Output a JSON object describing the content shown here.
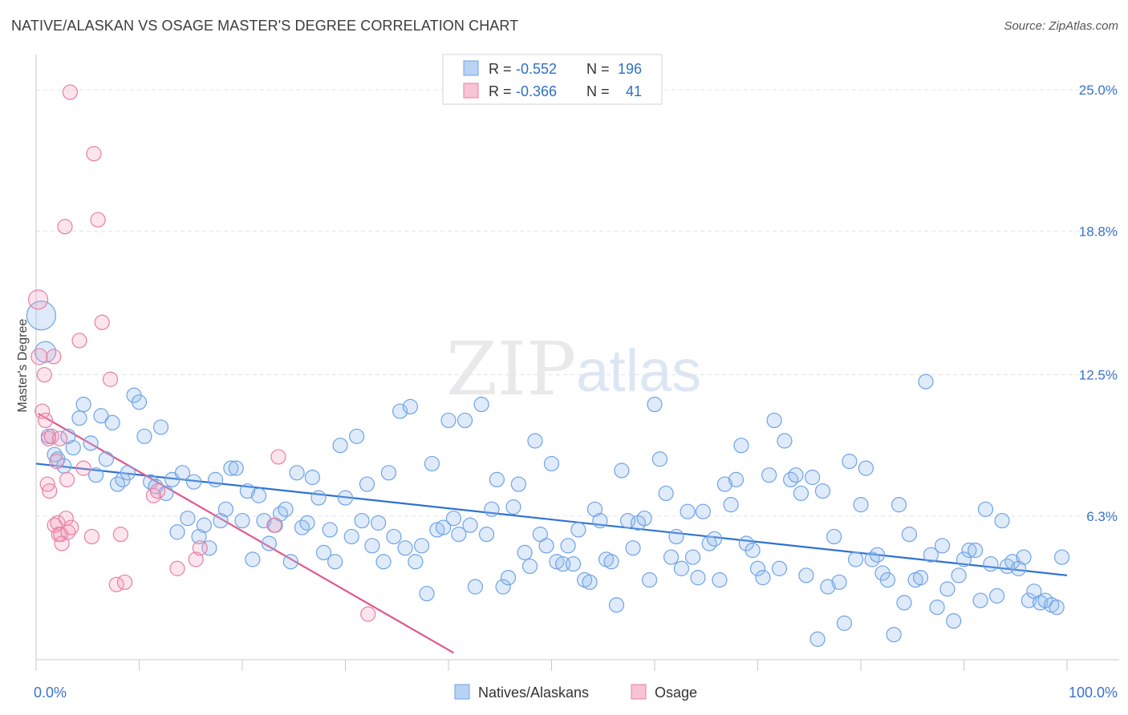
{
  "title": "NATIVE/ALASKAN VS OSAGE MASTER'S DEGREE CORRELATION CHART",
  "source": "Source: ZipAtlas.com",
  "watermark": {
    "zip": "ZIP",
    "atlas": "atlas"
  },
  "chart_data": {
    "type": "scatter",
    "xlabel": "",
    "ylabel": "Master's Degree",
    "xlim": [
      0,
      100
    ],
    "ylim": [
      0,
      26.2
    ],
    "x_tick_labels": [
      "0.0%",
      "100.0%"
    ],
    "y_ticks": [
      {
        "value": 25.0,
        "label": "25.0%"
      },
      {
        "value": 18.8,
        "label": "18.8%"
      },
      {
        "value": 12.5,
        "label": "12.5%"
      },
      {
        "value": 6.3,
        "label": "6.3%"
      }
    ],
    "grid": true,
    "legend_position": "top-center",
    "legend": [
      {
        "name": "Natives/Alaskans",
        "r_label": "R = ",
        "r_value": "-0.552",
        "n_label": "N = ",
        "n_value": "196",
        "color": "#6fa3e6",
        "fill": "#b9d3f5"
      },
      {
        "name": "Osage",
        "r_label": "R = ",
        "r_value": "-0.366",
        "n_label": "N = ",
        "n_value": "41",
        "color": "#e87fa3",
        "fill": "#f8c3d5"
      }
    ],
    "series": [
      {
        "name": "Natives/Alaskans",
        "color": "#6fa3e6",
        "trend": {
          "x": [
            0,
            100
          ],
          "y": [
            8.6,
            3.7
          ]
        },
        "points": [
          [
            0.5,
            15.1
          ],
          [
            0.9,
            13.5
          ],
          [
            1.2,
            9.8
          ],
          [
            1.8,
            9.0
          ],
          [
            2.1,
            8.8
          ],
          [
            2.7,
            8.5
          ],
          [
            3.1,
            9.8
          ],
          [
            3.6,
            9.3
          ],
          [
            4.2,
            10.6
          ],
          [
            4.6,
            11.2
          ],
          [
            5.3,
            9.5
          ],
          [
            5.8,
            8.1
          ],
          [
            6.3,
            10.7
          ],
          [
            6.8,
            8.8
          ],
          [
            7.4,
            10.4
          ],
          [
            7.9,
            7.7
          ],
          [
            8.4,
            7.9
          ],
          [
            8.9,
            8.2
          ],
          [
            9.5,
            11.6
          ],
          [
            10.0,
            11.3
          ],
          [
            10.5,
            9.8
          ],
          [
            11.1,
            7.8
          ],
          [
            11.6,
            7.6
          ],
          [
            12.1,
            10.2
          ],
          [
            12.6,
            7.3
          ],
          [
            13.2,
            7.9
          ],
          [
            13.7,
            5.6
          ],
          [
            14.2,
            8.2
          ],
          [
            14.7,
            6.2
          ],
          [
            15.3,
            7.8
          ],
          [
            15.8,
            5.4
          ],
          [
            16.3,
            5.9
          ],
          [
            16.8,
            4.9
          ],
          [
            17.4,
            7.9
          ],
          [
            17.9,
            6.1
          ],
          [
            18.4,
            6.6
          ],
          [
            18.9,
            8.4
          ],
          [
            19.4,
            8.4
          ],
          [
            20.0,
            6.1
          ],
          [
            20.5,
            7.4
          ],
          [
            21.0,
            4.4
          ],
          [
            21.6,
            7.2
          ],
          [
            22.1,
            6.1
          ],
          [
            22.6,
            5.1
          ],
          [
            23.2,
            5.9
          ],
          [
            23.7,
            6.4
          ],
          [
            24.2,
            6.6
          ],
          [
            24.7,
            4.3
          ],
          [
            25.3,
            8.2
          ],
          [
            25.8,
            5.8
          ],
          [
            26.3,
            6.0
          ],
          [
            26.8,
            8.0
          ],
          [
            27.4,
            7.1
          ],
          [
            27.9,
            4.7
          ],
          [
            28.5,
            5.7
          ],
          [
            29.0,
            4.3
          ],
          [
            29.5,
            9.4
          ],
          [
            30.0,
            7.1
          ],
          [
            30.6,
            5.4
          ],
          [
            31.1,
            9.8
          ],
          [
            31.6,
            6.1
          ],
          [
            32.1,
            7.7
          ],
          [
            32.6,
            5.0
          ],
          [
            33.2,
            6.0
          ],
          [
            33.7,
            4.3
          ],
          [
            34.2,
            8.2
          ],
          [
            34.7,
            5.4
          ],
          [
            35.3,
            10.9
          ],
          [
            35.8,
            4.9
          ],
          [
            36.3,
            11.1
          ],
          [
            36.8,
            4.3
          ],
          [
            37.4,
            5.0
          ],
          [
            37.9,
            2.9
          ],
          [
            38.4,
            8.6
          ],
          [
            38.9,
            5.7
          ],
          [
            39.5,
            5.8
          ],
          [
            40.0,
            10.5
          ],
          [
            40.5,
            6.2
          ],
          [
            41.0,
            5.5
          ],
          [
            41.6,
            10.5
          ],
          [
            42.1,
            5.9
          ],
          [
            42.6,
            3.2
          ],
          [
            43.2,
            11.2
          ],
          [
            43.7,
            5.5
          ],
          [
            44.2,
            6.6
          ],
          [
            44.7,
            7.9
          ],
          [
            45.3,
            3.2
          ],
          [
            45.8,
            3.6
          ],
          [
            46.3,
            6.7
          ],
          [
            46.8,
            7.7
          ],
          [
            47.4,
            4.7
          ],
          [
            47.9,
            4.1
          ],
          [
            48.4,
            9.6
          ],
          [
            48.9,
            5.5
          ],
          [
            49.5,
            5.0
          ],
          [
            50.0,
            8.6
          ],
          [
            50.5,
            4.3
          ],
          [
            51.1,
            4.2
          ],
          [
            51.6,
            5.0
          ],
          [
            52.1,
            4.2
          ],
          [
            52.6,
            5.7
          ],
          [
            53.2,
            3.5
          ],
          [
            53.7,
            3.4
          ],
          [
            54.2,
            6.6
          ],
          [
            54.7,
            6.1
          ],
          [
            55.3,
            4.4
          ],
          [
            55.8,
            4.3
          ],
          [
            56.3,
            2.4
          ],
          [
            56.8,
            8.3
          ],
          [
            57.4,
            6.1
          ],
          [
            57.9,
            4.9
          ],
          [
            58.4,
            6.0
          ],
          [
            59.0,
            6.2
          ],
          [
            59.5,
            3.5
          ],
          [
            60.0,
            11.2
          ],
          [
            60.5,
            8.8
          ],
          [
            61.1,
            7.3
          ],
          [
            61.6,
            4.5
          ],
          [
            62.1,
            5.4
          ],
          [
            62.6,
            4.0
          ],
          [
            63.2,
            6.5
          ],
          [
            63.7,
            4.5
          ],
          [
            64.2,
            3.6
          ],
          [
            64.7,
            6.5
          ],
          [
            65.3,
            5.1
          ],
          [
            65.8,
            5.3
          ],
          [
            66.3,
            3.5
          ],
          [
            66.8,
            7.7
          ],
          [
            67.4,
            6.8
          ],
          [
            67.9,
            7.9
          ],
          [
            68.4,
            9.4
          ],
          [
            68.9,
            5.1
          ],
          [
            69.5,
            4.8
          ],
          [
            70.0,
            4.0
          ],
          [
            70.5,
            3.6
          ],
          [
            71.1,
            8.1
          ],
          [
            71.6,
            10.5
          ],
          [
            72.1,
            4.0
          ],
          [
            72.6,
            9.6
          ],
          [
            73.2,
            7.9
          ],
          [
            73.7,
            8.1
          ],
          [
            74.2,
            7.3
          ],
          [
            74.7,
            3.7
          ],
          [
            75.3,
            8.0
          ],
          [
            75.8,
            0.9
          ],
          [
            76.3,
            7.4
          ],
          [
            76.8,
            3.2
          ],
          [
            77.4,
            5.4
          ],
          [
            77.9,
            3.4
          ],
          [
            78.4,
            1.6
          ],
          [
            78.9,
            8.7
          ],
          [
            79.5,
            4.4
          ],
          [
            80.0,
            6.8
          ],
          [
            80.5,
            8.4
          ],
          [
            81.1,
            4.4
          ],
          [
            81.6,
            4.6
          ],
          [
            82.1,
            3.8
          ],
          [
            82.6,
            3.5
          ],
          [
            83.2,
            1.1
          ],
          [
            83.7,
            6.8
          ],
          [
            84.2,
            2.5
          ],
          [
            84.7,
            5.5
          ],
          [
            85.3,
            3.5
          ],
          [
            85.8,
            3.6
          ],
          [
            86.3,
            12.2
          ],
          [
            86.8,
            4.6
          ],
          [
            87.4,
            2.3
          ],
          [
            87.9,
            5.0
          ],
          [
            88.4,
            3.1
          ],
          [
            89.0,
            1.7
          ],
          [
            89.5,
            3.7
          ],
          [
            90.0,
            4.4
          ],
          [
            90.5,
            4.8
          ],
          [
            91.1,
            4.8
          ],
          [
            91.6,
            2.6
          ],
          [
            92.1,
            6.6
          ],
          [
            92.6,
            4.2
          ],
          [
            93.2,
            2.8
          ],
          [
            93.7,
            6.1
          ],
          [
            94.2,
            4.1
          ],
          [
            94.7,
            4.3
          ],
          [
            95.3,
            4.0
          ],
          [
            95.8,
            4.5
          ],
          [
            96.3,
            2.6
          ],
          [
            96.8,
            3.0
          ],
          [
            97.4,
            2.5
          ],
          [
            97.9,
            2.6
          ],
          [
            98.5,
            2.4
          ],
          [
            99.0,
            2.3
          ],
          [
            99.5,
            4.5
          ]
        ]
      },
      {
        "name": "Osage",
        "color": "#e87fa3",
        "trend": {
          "x": [
            0.2,
            40.5
          ],
          "y": [
            10.8,
            0.3
          ]
        },
        "points": [
          [
            0.2,
            15.8
          ],
          [
            0.3,
            13.3
          ],
          [
            0.6,
            10.9
          ],
          [
            0.8,
            12.5
          ],
          [
            0.9,
            10.5
          ],
          [
            1.1,
            7.7
          ],
          [
            1.2,
            9.7
          ],
          [
            1.3,
            7.4
          ],
          [
            1.5,
            9.8
          ],
          [
            1.7,
            13.3
          ],
          [
            1.8,
            5.9
          ],
          [
            2.0,
            8.7
          ],
          [
            2.1,
            6.0
          ],
          [
            2.2,
            5.5
          ],
          [
            2.3,
            9.7
          ],
          [
            2.4,
            5.5
          ],
          [
            2.5,
            5.1
          ],
          [
            2.9,
            6.2
          ],
          [
            3.0,
            7.9
          ],
          [
            3.1,
            5.6
          ],
          [
            3.3,
            24.9
          ],
          [
            3.4,
            5.8
          ],
          [
            4.2,
            14.0
          ],
          [
            4.6,
            8.4
          ],
          [
            5.4,
            5.4
          ],
          [
            5.6,
            22.2
          ],
          [
            6.0,
            19.3
          ],
          [
            6.4,
            14.8
          ],
          [
            7.2,
            12.3
          ],
          [
            7.8,
            3.3
          ],
          [
            8.2,
            5.5
          ],
          [
            8.6,
            3.4
          ],
          [
            11.4,
            7.2
          ],
          [
            11.8,
            7.4
          ],
          [
            13.7,
            4.0
          ],
          [
            15.5,
            4.4
          ],
          [
            15.9,
            4.9
          ],
          [
            23.1,
            5.9
          ],
          [
            23.5,
            8.9
          ],
          [
            32.2,
            2.0
          ],
          [
            2.8,
            19.0
          ]
        ]
      }
    ]
  }
}
